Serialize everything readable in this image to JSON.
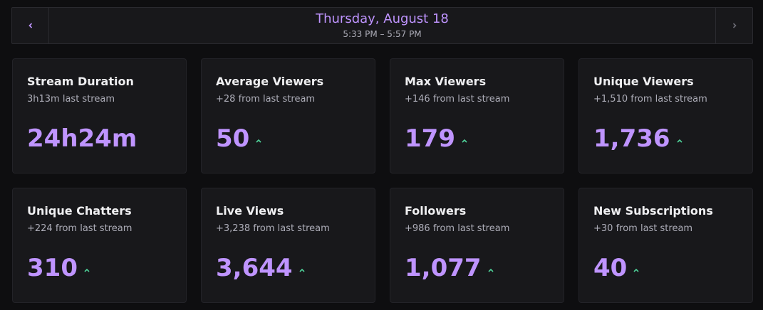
{
  "header": {
    "date": "Thursday, August 18",
    "time_range": "5:33 PM – 5:57 PM"
  },
  "cards": [
    {
      "title": "Stream Duration",
      "change": "3h13m last stream",
      "value": "24h24m"
    },
    {
      "title": "Average Viewers",
      "change": "+28 from last stream",
      "value": "50"
    },
    {
      "title": "Max Viewers",
      "change": "+146 from last stream",
      "value": "179"
    },
    {
      "title": "Unique Viewers",
      "change": "+1,510 from last stream",
      "value": "1,736"
    },
    {
      "title": "Unique Chatters",
      "change": "+224 from last stream",
      "value": "310"
    },
    {
      "title": "Live Views",
      "change": "+3,238 from last stream",
      "value": "3,644"
    },
    {
      "title": "Followers",
      "change": "+986 from last stream",
      "value": "1,077"
    },
    {
      "title": "New Subscriptions",
      "change": "+30 from last stream",
      "value": "40"
    }
  ]
}
